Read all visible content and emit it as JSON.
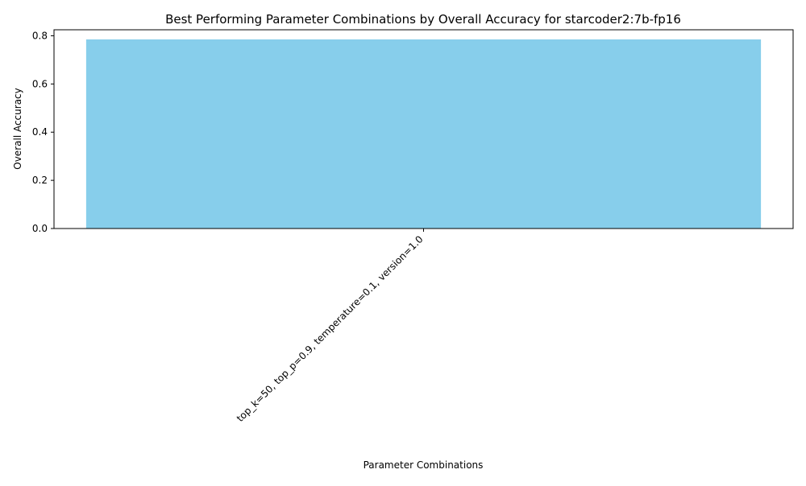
{
  "chart_data": {
    "type": "bar",
    "title": "Best Performing Parameter Combinations by Overall Accuracy for starcoder2:7b-fp16",
    "xlabel": "Parameter Combinations",
    "ylabel": "Overall Accuracy",
    "categories": [
      "top_k=50, top_p=0.9, temperature=0.1, version=1.0"
    ],
    "values": [
      0.785
    ],
    "ylim": [
      0,
      0.825
    ],
    "yticks": [
      "0.0",
      "0.2",
      "0.4",
      "0.6",
      "0.8"
    ],
    "bar_color": "#87CEEB",
    "grid": false,
    "legend": "none"
  }
}
